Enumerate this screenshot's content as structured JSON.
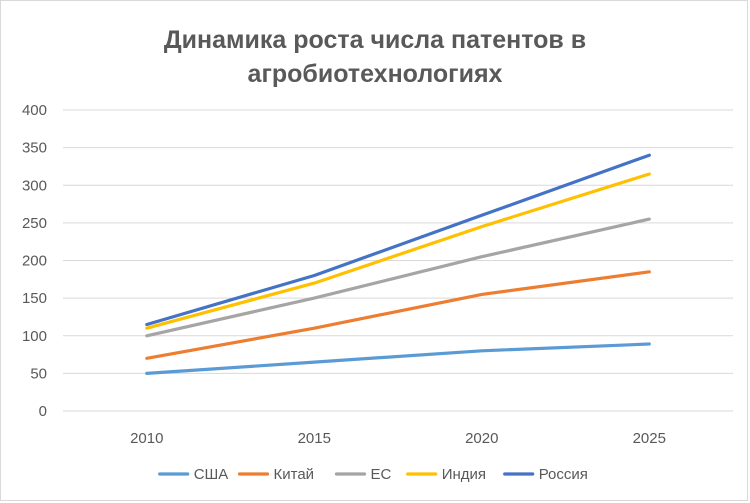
{
  "chart_data": {
    "type": "line",
    "title": "Динамика роста числа патентов в агробиотехнологиях",
    "title_lines": [
      "Динамика роста числа патентов в",
      "агробиотехнологиях"
    ],
    "xlabel": "",
    "ylabel": "",
    "categories": [
      "2010",
      "2015",
      "2020",
      "2025"
    ],
    "ylim": [
      0,
      400
    ],
    "yticks": [
      0,
      50,
      100,
      150,
      200,
      250,
      300,
      350,
      400
    ],
    "grid": true,
    "legend_position": "bottom",
    "series": [
      {
        "name": "США",
        "color": "#5b9bd5",
        "values": [
          50,
          65,
          80,
          89
        ]
      },
      {
        "name": "Китай",
        "color": "#ed7d31",
        "values": [
          70,
          110,
          155,
          185
        ]
      },
      {
        "name": "ЕС",
        "color": "#a5a5a5",
        "values": [
          100,
          150,
          205,
          255
        ]
      },
      {
        "name": "Индия",
        "color": "#ffc000",
        "values": [
          110,
          170,
          245,
          315
        ]
      },
      {
        "name": "Россия",
        "color": "#4472c4",
        "values": [
          115,
          180,
          260,
          340
        ]
      }
    ]
  }
}
